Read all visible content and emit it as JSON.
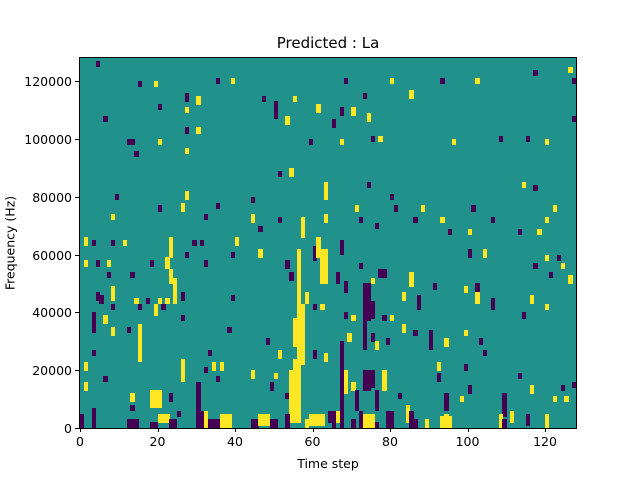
{
  "figure": {
    "title": "Predicted : La",
    "xlabel": "Time step",
    "ylabel": "Frequency (Hz)"
  },
  "chart_data": {
    "type": "heatmap",
    "title": "Predicted : La",
    "xlabel": "Time step",
    "ylabel": "Frequency (Hz)",
    "x_range": [
      0,
      128
    ],
    "y_range": [
      0,
      128000
    ],
    "x_ticks": [
      0,
      20,
      40,
      60,
      80,
      100,
      120
    ],
    "y_ticks": [
      0,
      20000,
      40000,
      60000,
      80000,
      100000,
      120000
    ],
    "grid": false,
    "legend": "none",
    "colormap": {
      "background": "#21918c",
      "low": "#440154",
      "high": "#fde725"
    },
    "cell_encoding": "[time_step, freq_bin_start, freq_bin_end, color] where color p=#440154 (low), y=#fde725 (high); freq bins are 1000 Hz each on a 128x128 grid; background value rendered #21918c",
    "cells": [
      [
        4,
        125,
        126,
        "p"
      ],
      [
        15,
        118,
        119,
        "p"
      ],
      [
        19,
        118,
        119,
        "y"
      ],
      [
        35,
        119,
        120,
        "p"
      ],
      [
        39,
        119,
        120,
        "y"
      ],
      [
        68,
        119,
        120,
        "p"
      ],
      [
        80,
        119,
        120,
        "y"
      ],
      [
        93,
        119,
        120,
        "p"
      ],
      [
        102,
        119,
        120,
        "y"
      ],
      [
        117,
        122,
        123,
        "p"
      ],
      [
        126,
        123,
        124,
        "y"
      ],
      [
        127,
        119,
        120,
        "p"
      ],
      [
        27,
        113,
        115,
        "p"
      ],
      [
        30,
        112,
        114,
        "y"
      ],
      [
        47,
        113,
        114,
        "p"
      ],
      [
        55,
        113,
        114,
        "y"
      ],
      [
        73,
        114,
        115,
        "p"
      ],
      [
        85,
        114,
        116,
        "y"
      ],
      [
        20,
        110,
        111,
        "p"
      ],
      [
        27,
        109,
        110,
        "y"
      ],
      [
        50,
        107,
        112,
        "p"
      ],
      [
        53,
        105,
        107,
        "y"
      ],
      [
        61,
        109,
        111,
        "y"
      ],
      [
        65,
        104,
        106,
        "p"
      ],
      [
        67,
        108,
        110,
        "p"
      ],
      [
        70,
        108,
        110,
        "y"
      ],
      [
        74,
        106,
        108,
        "y"
      ],
      [
        6,
        106,
        107,
        "p"
      ],
      [
        127,
        106,
        107,
        "p"
      ],
      [
        27,
        102,
        103,
        "p"
      ],
      [
        30,
        102,
        103,
        "y"
      ],
      [
        12,
        98,
        99,
        "p"
      ],
      [
        13,
        98,
        99,
        "p"
      ],
      [
        20,
        98,
        99,
        "y"
      ],
      [
        59,
        98,
        99,
        "p"
      ],
      [
        67,
        98,
        99,
        "y"
      ],
      [
        75,
        99,
        100,
        "p"
      ],
      [
        77,
        99,
        100,
        "y"
      ],
      [
        96,
        98,
        99,
        "y"
      ],
      [
        108,
        99,
        100,
        "p"
      ],
      [
        115,
        99,
        100,
        "p"
      ],
      [
        120,
        98,
        99,
        "y"
      ],
      [
        14,
        94,
        95,
        "p"
      ],
      [
        27,
        95,
        96,
        "y"
      ],
      [
        51,
        87,
        88,
        "p"
      ],
      [
        54,
        87,
        89,
        "y"
      ],
      [
        9,
        79,
        80,
        "p"
      ],
      [
        27,
        79,
        81,
        "y"
      ],
      [
        44,
        78,
        79,
        "p"
      ],
      [
        63,
        79,
        84,
        "y"
      ],
      [
        74,
        83,
        84,
        "p"
      ],
      [
        80,
        79,
        80,
        "p"
      ],
      [
        114,
        83,
        84,
        "y"
      ],
      [
        117,
        82,
        83,
        "p"
      ],
      [
        20,
        75,
        76,
        "p"
      ],
      [
        26,
        75,
        77,
        "y"
      ],
      [
        35,
        76,
        77,
        "p"
      ],
      [
        71,
        75,
        76,
        "y"
      ],
      [
        81,
        75,
        76,
        "p"
      ],
      [
        88,
        75,
        76,
        "y"
      ],
      [
        101,
        75,
        76,
        "p"
      ],
      [
        122,
        75,
        76,
        "y"
      ],
      [
        8,
        72,
        73,
        "y"
      ],
      [
        32,
        72,
        73,
        "p"
      ],
      [
        44,
        71,
        73,
        "y"
      ],
      [
        51,
        71,
        72,
        "p"
      ],
      [
        57,
        66,
        72,
        "y"
      ],
      [
        63,
        71,
        73,
        "y"
      ],
      [
        72,
        71,
        72,
        "p"
      ],
      [
        86,
        71,
        72,
        "p"
      ],
      [
        93,
        71,
        72,
        "y"
      ],
      [
        106,
        71,
        72,
        "p"
      ],
      [
        120,
        71,
        72,
        "y"
      ],
      [
        46,
        68,
        69,
        "p"
      ],
      [
        76,
        69,
        70,
        "p"
      ],
      [
        95,
        67,
        68,
        "p"
      ],
      [
        100,
        67,
        68,
        "y"
      ],
      [
        113,
        67,
        68,
        "p"
      ],
      [
        118,
        67,
        68,
        "y"
      ],
      [
        1,
        63,
        65,
        "y"
      ],
      [
        3,
        63,
        64,
        "p"
      ],
      [
        8,
        63,
        64,
        "p"
      ],
      [
        11,
        63,
        64,
        "y"
      ],
      [
        23,
        59,
        65,
        "y"
      ],
      [
        29,
        63,
        64,
        "p"
      ],
      [
        31,
        63,
        64,
        "p"
      ],
      [
        40,
        63,
        65,
        "y"
      ],
      [
        27,
        59,
        60,
        "p"
      ],
      [
        39,
        59,
        60,
        "p"
      ],
      [
        46,
        59,
        61,
        "y"
      ],
      [
        60,
        58,
        62,
        "p"
      ],
      [
        61,
        59,
        65,
        "y"
      ],
      [
        67,
        60,
        64,
        "p"
      ],
      [
        100,
        59,
        61,
        "p"
      ],
      [
        104,
        59,
        61,
        "y"
      ],
      [
        120,
        58,
        59,
        "y"
      ],
      [
        123,
        58,
        59,
        "p"
      ],
      [
        1,
        56,
        57,
        "y"
      ],
      [
        4,
        56,
        57,
        "p"
      ],
      [
        7,
        56,
        57,
        "y"
      ],
      [
        18,
        56,
        57,
        "p"
      ],
      [
        22,
        55,
        58,
        "y"
      ],
      [
        32,
        56,
        57,
        "p"
      ],
      [
        53,
        55,
        57,
        "p"
      ],
      [
        62,
        50,
        61,
        "y"
      ],
      [
        63,
        50,
        61,
        "y"
      ],
      [
        72,
        55,
        56,
        "p"
      ],
      [
        117,
        55,
        56,
        "p"
      ],
      [
        124,
        55,
        56,
        "y"
      ],
      [
        7,
        52,
        53,
        "p"
      ],
      [
        13,
        52,
        53,
        "p"
      ],
      [
        23,
        50,
        54,
        "y"
      ],
      [
        54,
        51,
        53,
        "p"
      ],
      [
        66,
        50,
        53,
        "p"
      ],
      [
        77,
        52,
        54,
        "p"
      ],
      [
        78,
        52,
        54,
        "p"
      ],
      [
        75,
        50,
        51,
        "y"
      ],
      [
        85,
        49,
        53,
        "y"
      ],
      [
        121,
        52,
        53,
        "p"
      ],
      [
        126,
        50,
        52,
        "y"
      ],
      [
        24,
        43,
        51,
        "y"
      ],
      [
        4,
        44,
        46,
        "p"
      ],
      [
        5,
        43,
        45,
        "p"
      ],
      [
        8,
        44,
        48,
        "y"
      ],
      [
        14,
        43,
        44,
        "y"
      ],
      [
        17,
        43,
        44,
        "p"
      ],
      [
        20,
        43,
        44,
        "y"
      ],
      [
        22,
        43,
        44,
        "y"
      ],
      [
        26,
        44,
        46,
        "p"
      ],
      [
        39,
        44,
        45,
        "p"
      ],
      [
        56,
        2,
        61,
        "y"
      ],
      [
        58,
        43,
        46,
        "y"
      ],
      [
        68,
        47,
        50,
        "p"
      ],
      [
        73,
        27,
        49,
        "p"
      ],
      [
        74,
        37,
        49,
        "p"
      ],
      [
        75,
        38,
        43,
        "p"
      ],
      [
        83,
        44,
        46,
        "y"
      ],
      [
        87,
        43,
        45,
        "p"
      ],
      [
        91,
        48,
        49,
        "p"
      ],
      [
        99,
        47,
        48,
        "y"
      ],
      [
        102,
        47,
        49,
        "p"
      ],
      [
        102,
        43,
        46,
        "y"
      ],
      [
        106,
        41,
        44,
        "p"
      ],
      [
        116,
        43,
        45,
        "y"
      ],
      [
        8,
        41,
        42,
        "p"
      ],
      [
        15,
        41,
        42,
        "p"
      ],
      [
        19,
        39,
        42,
        "y"
      ],
      [
        21,
        41,
        42,
        "p"
      ],
      [
        26,
        37,
        38,
        "p"
      ],
      [
        6,
        36,
        38,
        "y"
      ],
      [
        3,
        33,
        39,
        "p"
      ],
      [
        8,
        32,
        34,
        "y"
      ],
      [
        12,
        33,
        34,
        "p"
      ],
      [
        15,
        23,
        35,
        "y"
      ],
      [
        38,
        33,
        34,
        "p"
      ],
      [
        57,
        22,
        42,
        "y"
      ],
      [
        60,
        41,
        42,
        "p"
      ],
      [
        62,
        41,
        42,
        "y"
      ],
      [
        55,
        28,
        37,
        "y"
      ],
      [
        48,
        29,
        30,
        "p"
      ],
      [
        68,
        38,
        39,
        "p"
      ],
      [
        70,
        37,
        38,
        "y"
      ],
      [
        78,
        37,
        38,
        "p"
      ],
      [
        80,
        37,
        38,
        "y"
      ],
      [
        83,
        33,
        35,
        "y"
      ],
      [
        79,
        29,
        30,
        "p"
      ],
      [
        69,
        30,
        32,
        "y"
      ],
      [
        75,
        30,
        32,
        "p"
      ],
      [
        76,
        27,
        29,
        "y"
      ],
      [
        87,
        41,
        42,
        "p"
      ],
      [
        120,
        41,
        42,
        "y"
      ],
      [
        114,
        38,
        39,
        "p"
      ],
      [
        86,
        32,
        33,
        "p"
      ],
      [
        90,
        27,
        33,
        "p"
      ],
      [
        94,
        28,
        30,
        "y"
      ],
      [
        99,
        32,
        33,
        "y"
      ],
      [
        103,
        29,
        30,
        "p"
      ],
      [
        104,
        25,
        26,
        "p"
      ],
      [
        3,
        25,
        26,
        "p"
      ],
      [
        33,
        25,
        26,
        "p"
      ],
      [
        51,
        24,
        26,
        "y"
      ],
      [
        60,
        24,
        26,
        "p"
      ],
      [
        63,
        23,
        25,
        "y"
      ],
      [
        67,
        0,
        29,
        "p"
      ],
      [
        1,
        20,
        22,
        "y"
      ],
      [
        34,
        20,
        22,
        "y"
      ],
      [
        36,
        20,
        22,
        "y"
      ],
      [
        32,
        19,
        20,
        "p"
      ],
      [
        92,
        20,
        22,
        "y"
      ],
      [
        99,
        20,
        21,
        "p"
      ],
      [
        26,
        16,
        23,
        "y"
      ],
      [
        6,
        16,
        17,
        "p"
      ],
      [
        35,
        16,
        17,
        "p"
      ],
      [
        44,
        17,
        19,
        "y"
      ],
      [
        50,
        17,
        18,
        "y"
      ],
      [
        73,
        13,
        19,
        "p"
      ],
      [
        74,
        13,
        19,
        "p"
      ],
      [
        75,
        14,
        19,
        "p"
      ],
      [
        78,
        13,
        19,
        "y"
      ],
      [
        92,
        16,
        18,
        "p"
      ],
      [
        113,
        17,
        18,
        "p"
      ],
      [
        1,
        13,
        15,
        "y"
      ],
      [
        49,
        13,
        15,
        "p"
      ],
      [
        70,
        13,
        15,
        "y"
      ],
      [
        116,
        12,
        14,
        "y"
      ],
      [
        124,
        13,
        14,
        "p"
      ],
      [
        127,
        14,
        15,
        "p"
      ],
      [
        30,
        8,
        15,
        "p"
      ],
      [
        13,
        9,
        11,
        "y"
      ],
      [
        18,
        7,
        12,
        "y"
      ],
      [
        19,
        7,
        12,
        "y"
      ],
      [
        20,
        7,
        12,
        "y"
      ],
      [
        23,
        9,
        11,
        "p"
      ],
      [
        53,
        10,
        11,
        "p"
      ],
      [
        54,
        2,
        19,
        "y"
      ],
      [
        55,
        2,
        23,
        "y"
      ],
      [
        68,
        12,
        19,
        "y"
      ],
      [
        71,
        6,
        12,
        "p"
      ],
      [
        76,
        6,
        12,
        "p"
      ],
      [
        82,
        10,
        11,
        "p"
      ],
      [
        94,
        6,
        11,
        "p"
      ],
      [
        98,
        9,
        10,
        "y"
      ],
      [
        100,
        12,
        14,
        "p"
      ],
      [
        109,
        4,
        11,
        "p"
      ],
      [
        122,
        9,
        10,
        "y"
      ],
      [
        125,
        9,
        10,
        "y"
      ],
      [
        13,
        6,
        7,
        "p"
      ],
      [
        84,
        5,
        7,
        "y"
      ],
      [
        0,
        0,
        4,
        "p"
      ],
      [
        3,
        0,
        6,
        "p"
      ],
      [
        12,
        0,
        2,
        "p"
      ],
      [
        13,
        0,
        2,
        "p"
      ],
      [
        14,
        0,
        2,
        "p"
      ],
      [
        18,
        0,
        1,
        "p"
      ],
      [
        19,
        0,
        1,
        "p"
      ],
      [
        20,
        2,
        4,
        "y"
      ],
      [
        21,
        2,
        4,
        "y"
      ],
      [
        22,
        2,
        4,
        "y"
      ],
      [
        23,
        0,
        2,
        "p"
      ],
      [
        24,
        0,
        2,
        "p"
      ],
      [
        25,
        4,
        5,
        "p"
      ],
      [
        30,
        0,
        7,
        "p"
      ],
      [
        31,
        0,
        5,
        "p"
      ],
      [
        32,
        0,
        5,
        "y"
      ],
      [
        33,
        0,
        2,
        "p"
      ],
      [
        34,
        0,
        2,
        "p"
      ],
      [
        35,
        0,
        2,
        "p"
      ],
      [
        36,
        0,
        4,
        "y"
      ],
      [
        37,
        0,
        4,
        "y"
      ],
      [
        38,
        0,
        4,
        "y"
      ],
      [
        44,
        0,
        2,
        "p"
      ],
      [
        45,
        0,
        2,
        "p"
      ],
      [
        46,
        1,
        4,
        "y"
      ],
      [
        47,
        1,
        4,
        "y"
      ],
      [
        48,
        1,
        4,
        "y"
      ],
      [
        49,
        0,
        2,
        "p"
      ],
      [
        50,
        0,
        2,
        "p"
      ],
      [
        53,
        0,
        4,
        "p"
      ],
      [
        58,
        0,
        2,
        "y"
      ],
      [
        59,
        1,
        4,
        "y"
      ],
      [
        60,
        1,
        4,
        "y"
      ],
      [
        61,
        1,
        4,
        "y"
      ],
      [
        62,
        1,
        4,
        "y"
      ],
      [
        64,
        2,
        5,
        "p"
      ],
      [
        65,
        0,
        5,
        "p"
      ],
      [
        66,
        2,
        5,
        "y"
      ],
      [
        70,
        0,
        2,
        "p"
      ],
      [
        72,
        0,
        5,
        "p"
      ],
      [
        73,
        0,
        4,
        "y"
      ],
      [
        74,
        0,
        4,
        "y"
      ],
      [
        75,
        0,
        4,
        "y"
      ],
      [
        76,
        0,
        1,
        "p"
      ],
      [
        79,
        0,
        5,
        "p"
      ],
      [
        80,
        0,
        5,
        "p"
      ],
      [
        84,
        2,
        5,
        "y"
      ],
      [
        85,
        0,
        5,
        "p"
      ],
      [
        86,
        0,
        2,
        "p"
      ],
      [
        89,
        0,
        2,
        "y"
      ],
      [
        93,
        0,
        3,
        "y"
      ],
      [
        94,
        0,
        4,
        "y"
      ],
      [
        95,
        0,
        3,
        "y"
      ],
      [
        108,
        0,
        4,
        "y"
      ],
      [
        109,
        0,
        2,
        "p"
      ],
      [
        111,
        2,
        5,
        "y"
      ],
      [
        115,
        1,
        4,
        "p"
      ],
      [
        120,
        0,
        4,
        "y"
      ]
    ]
  }
}
